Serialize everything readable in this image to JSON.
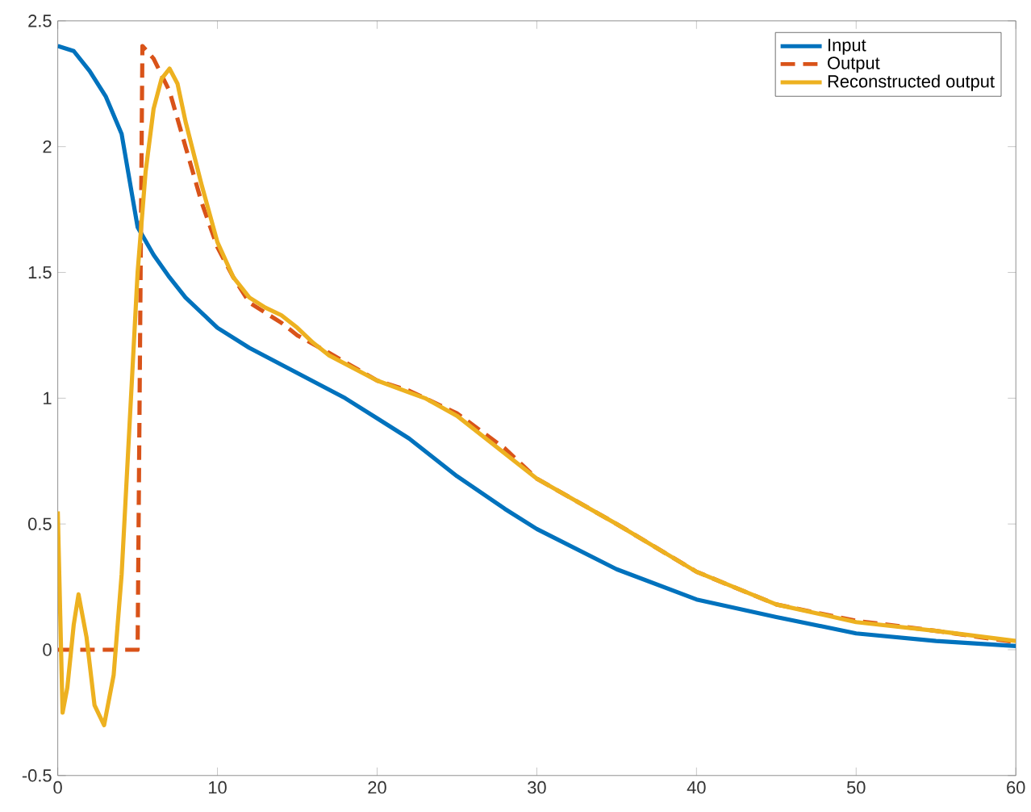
{
  "chart_data": {
    "type": "line",
    "xlim": [
      0,
      60
    ],
    "ylim": [
      -0.5,
      2.5
    ],
    "xticks": [
      0,
      10,
      20,
      30,
      40,
      50,
      60
    ],
    "yticks": [
      -0.5,
      0,
      0.5,
      1,
      1.5,
      2,
      2.5
    ],
    "grid": false,
    "legend": "top right",
    "series": [
      {
        "name": "Input",
        "color": "#0072bd",
        "line_style": "solid",
        "x": [
          0,
          1,
          2,
          3,
          4,
          5,
          6,
          7,
          8,
          10,
          12,
          15,
          18,
          20,
          22,
          25,
          28,
          30,
          35,
          40,
          45,
          50,
          55,
          60
        ],
        "values": [
          2.4,
          2.38,
          2.3,
          2.2,
          2.05,
          1.68,
          1.57,
          1.48,
          1.4,
          1.28,
          1.2,
          1.1,
          1.0,
          0.92,
          0.84,
          0.69,
          0.56,
          0.48,
          0.32,
          0.2,
          0.13,
          0.065,
          0.035,
          0.015
        ]
      },
      {
        "name": "Output",
        "color": "#d95319",
        "line_style": "dashed",
        "x": [
          0,
          5,
          5,
          5.3,
          6,
          7,
          8,
          9,
          10,
          11,
          12,
          14,
          15,
          17,
          20,
          22,
          25,
          28,
          30,
          35,
          40,
          45,
          50,
          55,
          60
        ],
        "values": [
          0,
          0,
          0,
          2.4,
          2.35,
          2.22,
          2.0,
          1.78,
          1.6,
          1.48,
          1.38,
          1.3,
          1.25,
          1.18,
          1.07,
          1.03,
          0.94,
          0.8,
          0.68,
          0.5,
          0.31,
          0.18,
          0.115,
          0.075,
          0.03
        ]
      },
      {
        "name": "Reconstructed output",
        "color": "#edb120",
        "line_style": "solid",
        "x": [
          0,
          0.3,
          0.6,
          1,
          1.3,
          1.8,
          2.3,
          2.9,
          3.5,
          4,
          4.5,
          5,
          5.5,
          6,
          6.5,
          7,
          7.5,
          8,
          9,
          10,
          11,
          12,
          13,
          14,
          15,
          16,
          17,
          20,
          23,
          25,
          30,
          35,
          40,
          45,
          50,
          55,
          60
        ],
        "values": [
          0.55,
          -0.25,
          -0.15,
          0.1,
          0.22,
          0.05,
          -0.22,
          -0.3,
          -0.1,
          0.3,
          0.9,
          1.5,
          1.9,
          2.15,
          2.27,
          2.31,
          2.25,
          2.1,
          1.85,
          1.62,
          1.48,
          1.4,
          1.36,
          1.33,
          1.28,
          1.22,
          1.17,
          1.07,
          1.0,
          0.93,
          0.68,
          0.5,
          0.31,
          0.18,
          0.11,
          0.075,
          0.035
        ]
      }
    ]
  }
}
